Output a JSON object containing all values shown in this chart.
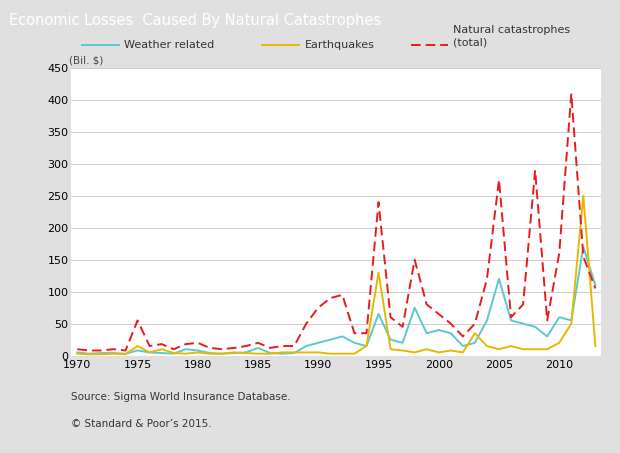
{
  "title": "Economic Losses  Caused By Natural Catastrophes",
  "ylabel": "(Bil. $)",
  "source_line1": "Source: Sigma World Insurance Database.",
  "source_line2": "© Standard & Poor’s 2015.",
  "bg_color": "#e0e0e0",
  "plot_bg_color": "#ffffff",
  "title_bg_color": "#787878",
  "years": [
    1970,
    1971,
    1972,
    1973,
    1974,
    1975,
    1976,
    1977,
    1978,
    1979,
    1980,
    1981,
    1982,
    1983,
    1984,
    1985,
    1986,
    1987,
    1988,
    1989,
    1990,
    1991,
    1992,
    1993,
    1994,
    1995,
    1996,
    1997,
    1998,
    1999,
    2000,
    2001,
    2002,
    2003,
    2004,
    2005,
    2006,
    2007,
    2008,
    2009,
    2010,
    2011,
    2012,
    2013
  ],
  "weather_related": [
    5,
    3,
    4,
    4,
    3,
    8,
    5,
    4,
    3,
    10,
    8,
    4,
    3,
    4,
    5,
    12,
    4,
    3,
    4,
    15,
    20,
    25,
    30,
    20,
    15,
    65,
    25,
    20,
    75,
    35,
    40,
    35,
    15,
    20,
    55,
    120,
    55,
    50,
    45,
    30,
    60,
    55,
    170,
    110
  ],
  "earthquakes": [
    3,
    2,
    2,
    3,
    2,
    15,
    5,
    10,
    4,
    3,
    5,
    3,
    3,
    5,
    4,
    3,
    3,
    5,
    5,
    5,
    5,
    3,
    3,
    3,
    15,
    130,
    10,
    8,
    5,
    10,
    5,
    8,
    5,
    35,
    15,
    10,
    15,
    10,
    10,
    10,
    20,
    50,
    250,
    15
  ],
  "natural_total": [
    10,
    8,
    8,
    10,
    8,
    55,
    15,
    18,
    10,
    18,
    20,
    12,
    10,
    12,
    15,
    20,
    12,
    15,
    15,
    50,
    75,
    90,
    95,
    35,
    35,
    240,
    60,
    45,
    150,
    80,
    65,
    50,
    30,
    50,
    120,
    275,
    60,
    80,
    290,
    55,
    160,
    410,
    155,
    105
  ],
  "weather_color": "#5bc8d0",
  "earthquake_color": "#e8b800",
  "total_color": "#e81c1c",
  "ylim": [
    0,
    450
  ],
  "yticks": [
    0,
    50,
    100,
    150,
    200,
    250,
    300,
    350,
    400,
    450
  ],
  "xlim": [
    1969.5,
    2013.5
  ],
  "xticks": [
    1970,
    1975,
    1980,
    1985,
    1990,
    1995,
    2000,
    2005,
    2010
  ]
}
